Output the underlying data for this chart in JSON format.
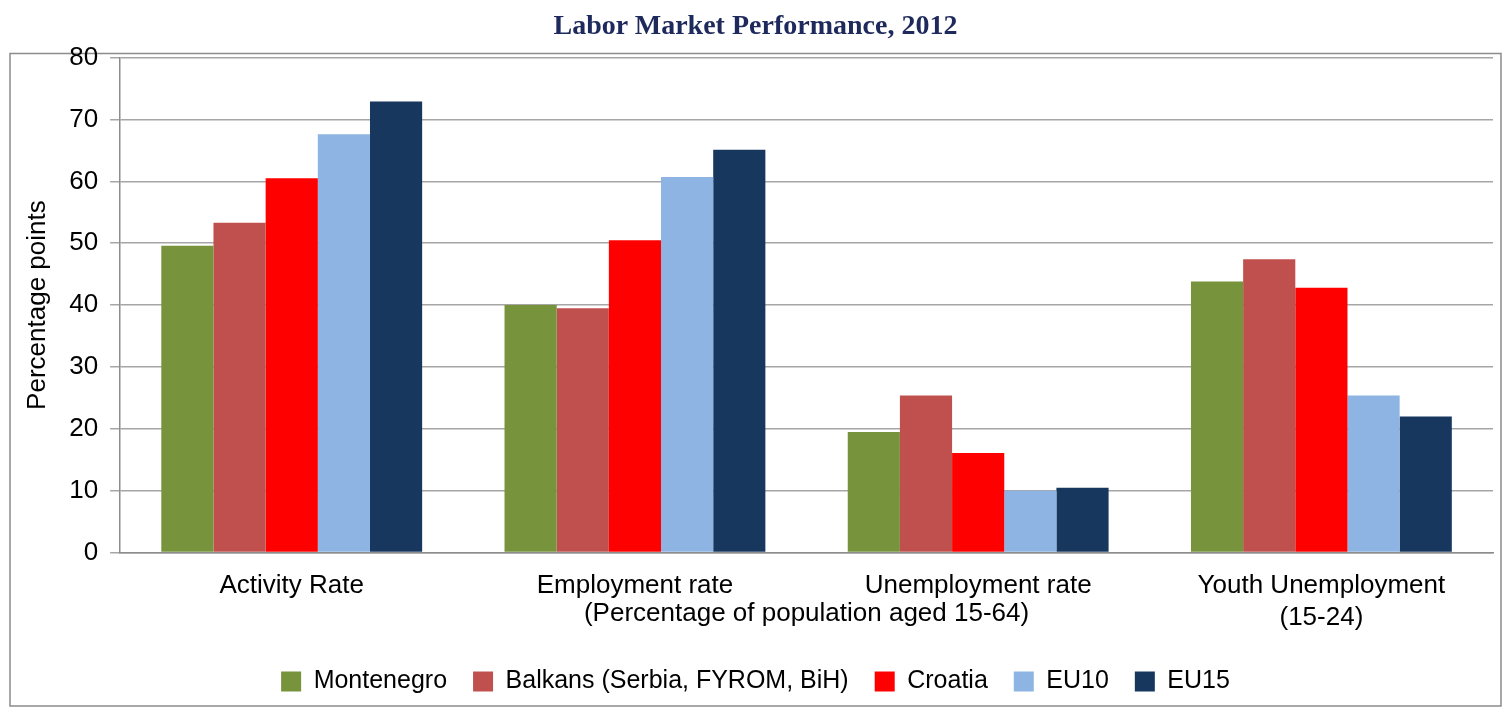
{
  "chart_data": {
    "type": "bar",
    "title": "Labor Market Performance, 2012",
    "ylabel": "Percentage points",
    "categories": [
      "Activity Rate",
      "Employment rate",
      "Unemployment rate",
      "Youth Unemployment (15-24)"
    ],
    "series": [
      {
        "name": "Montenegro",
        "color": "#77933c",
        "values": [
          49.6,
          40.0,
          19.5,
          43.8
        ]
      },
      {
        "name": "Balkans (Serbia, FYROM, BiH)",
        "color": "#c0504d",
        "values": [
          53.3,
          39.5,
          25.4,
          47.4
        ]
      },
      {
        "name": "Croatia",
        "color": "#ff0000",
        "values": [
          60.5,
          50.5,
          16.1,
          42.8
        ]
      },
      {
        "name": "EU10",
        "color": "#8eb4e3",
        "values": [
          67.6,
          60.7,
          10.0,
          25.4
        ]
      },
      {
        "name": "EU15",
        "color": "#17375e",
        "values": [
          72.9,
          65.1,
          10.5,
          22.0
        ]
      }
    ],
    "annotations": [
      "(Percentage of population aged 15-64)"
    ],
    "ylim": [
      0,
      80
    ],
    "yticks": [
      0,
      10,
      20,
      30,
      40,
      50,
      60,
      70,
      80
    ],
    "grid": "y",
    "legend": "bottom"
  }
}
